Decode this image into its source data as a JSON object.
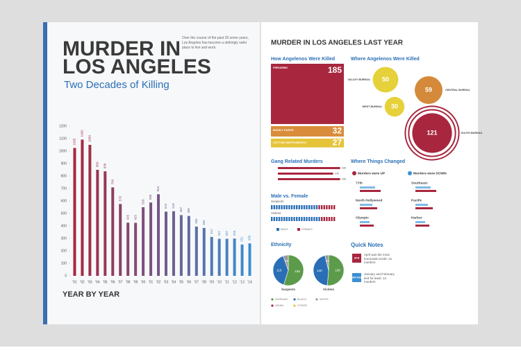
{
  "header": {
    "title_lines": [
      "MURDER IN",
      "LOS ANGELES"
    ],
    "subtitle": "Two Decades of Killing",
    "intro": "Over the course of the past 20 some years, Los Angeles has become a strikingly safer place to live and work."
  },
  "chart_data": {
    "type": "bar",
    "title": "YEAR BY YEAR",
    "categories": [
      "'91",
      "'92",
      "'93",
      "'94",
      "'95",
      "'96",
      "'97",
      "'98",
      "'99",
      "'00",
      "'01",
      "'02",
      "'03",
      "'04",
      "'05",
      "'06",
      "'07",
      "'08",
      "'09",
      "'10",
      "'11",
      "'12",
      "'13",
      "'14"
    ],
    "values": [
      1025,
      1092,
      1050,
      850,
      838,
      709,
      576,
      426,
      425,
      550,
      588,
      654,
      515,
      518,
      487,
      480,
      395,
      384,
      312,
      297,
      297,
      299,
      251,
      260
    ],
    "ylim": [
      0,
      1200
    ],
    "yticks": [
      0,
      100,
      200,
      300,
      400,
      500,
      600,
      700,
      800,
      900,
      1000,
      1100,
      1200
    ],
    "color_start": "#a8263e",
    "color_end": "#3b8fd4"
  },
  "right": {
    "title": "MURDER IN LOS ANGELES LAST YEAR",
    "how": {
      "title": "How Angelenos Were Killed",
      "items": [
        {
          "label": "FIREARMS",
          "value": 185
        },
        {
          "label": "BODILY FORCE",
          "value": 32
        },
        {
          "label": "CUTTING INSTRUMENTS",
          "value": 27
        }
      ],
      "colors": [
        "#a8263e",
        "#d98d3a",
        "#e6c43a"
      ]
    },
    "where": {
      "title": "Where Angelenos Were Killed",
      "items": [
        {
          "label": "VALLEY BUREAU",
          "value": 50
        },
        {
          "label": "CENTRAL BUREAU",
          "value": 59
        },
        {
          "label": "WEST BUREAU",
          "value": 30
        },
        {
          "label": "SOUTH BUREAU",
          "value": 121
        }
      ],
      "colors": [
        "#e6d13a",
        "#d48a3a",
        "#e6d13a",
        "#a8263e"
      ]
    },
    "gang": {
      "title": "Gang Related Murders",
      "values": [
        160,
        142,
        160
      ]
    },
    "gender": {
      "title": "Male vs. Female",
      "rows": [
        "Suspects",
        "Victims"
      ],
      "legend": [
        "MALE",
        "FEMALE"
      ]
    },
    "ethnicity": {
      "title": "Ethnicity",
      "legend": [
        "HISPANIC",
        "BLACK",
        "WHITE",
        "ASIAN",
        "OTHER"
      ],
      "colors": [
        "#5c9b4a",
        "#2a6fb5",
        "#9a9a9a",
        "#a8263e",
        "#e6c43a"
      ],
      "pies": [
        {
          "name": "Suspects",
          "values": [
            159,
            115,
            16
          ]
        },
        {
          "name": "Victims",
          "values": [
            160,
            140,
            12
          ]
        }
      ]
    },
    "changed": {
      "title": "Where Things Changed",
      "up": "Murders were UP",
      "down": "Murders were DOWN",
      "up_items": [
        "77th",
        "North Hollywood",
        "Olympic"
      ],
      "down_items": [
        "Southeast",
        "Pacific",
        "Harbor"
      ]
    },
    "notes": {
      "title": "Quick Notes",
      "items": [
        {
          "tag": "APR",
          "text": "April was the most homicidal month: 31 murders"
        },
        {
          "tag": "JAN FEB",
          "text": "January and February tied for least: 13 murders"
        }
      ]
    }
  }
}
